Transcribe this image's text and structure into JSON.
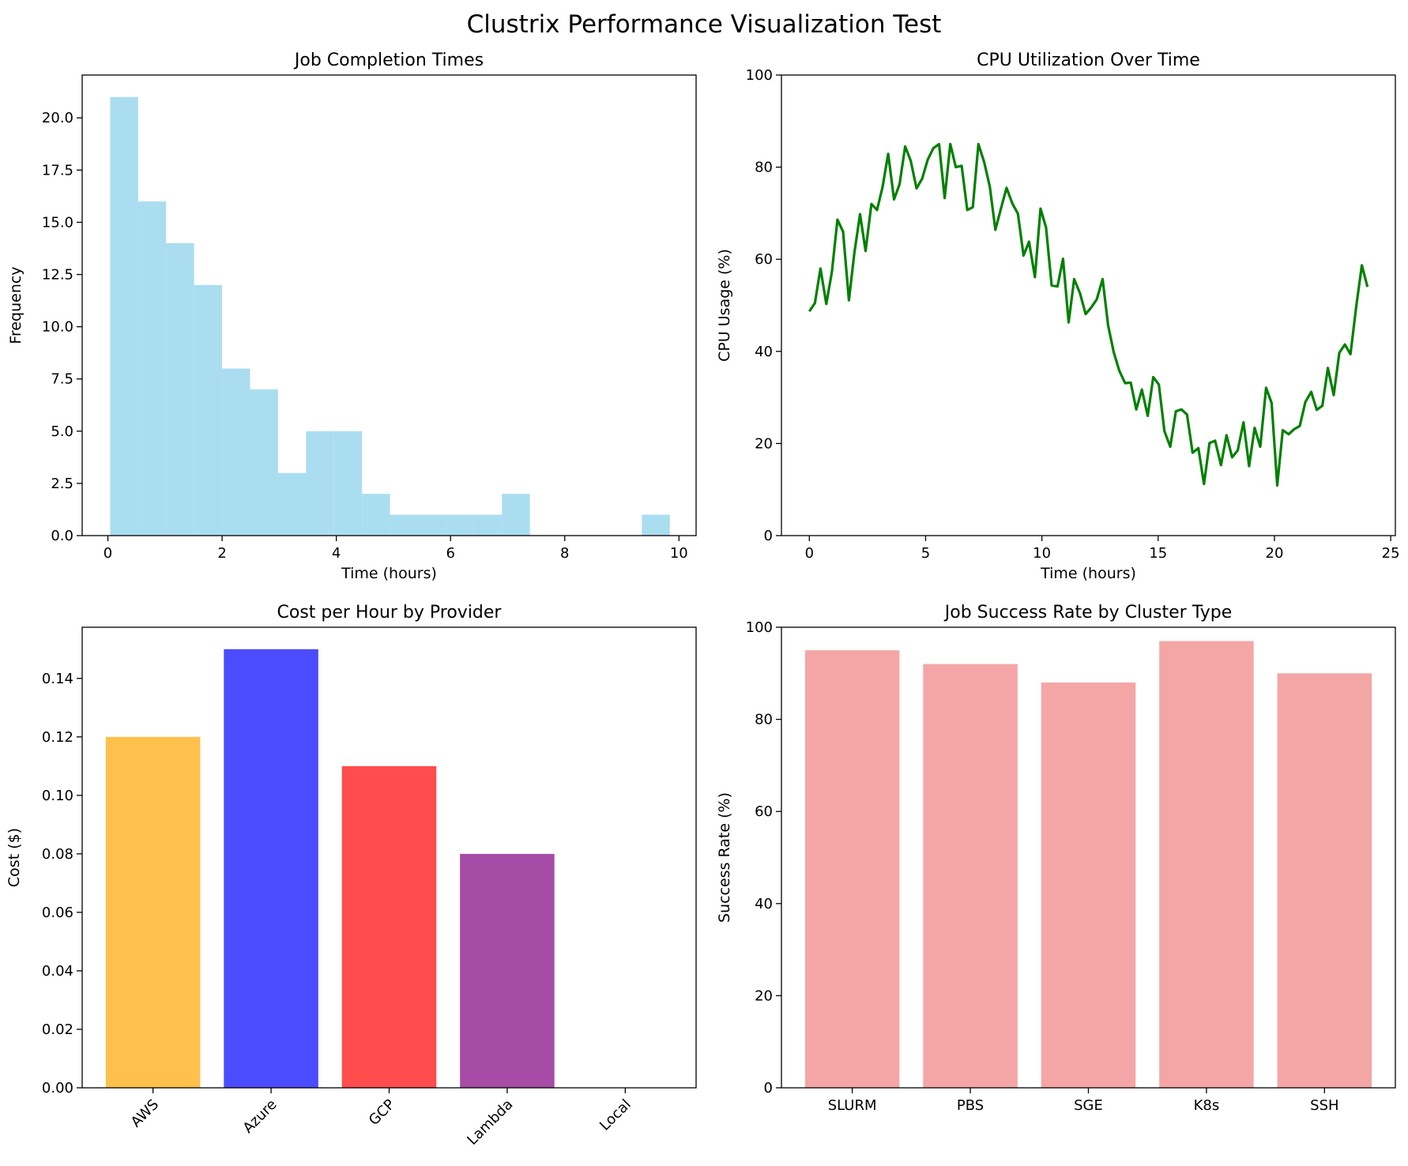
{
  "figure": {
    "title": "Clustrix Performance Visualization Test"
  },
  "chart_data": [
    {
      "id": "hist",
      "type": "bar",
      "title": "Job Completion Times",
      "xlabel": "Time (hours)",
      "ylabel": "Frequency",
      "xlim": [
        -0.45,
        10.3
      ],
      "ylim": [
        0,
        22.05
      ],
      "xticks": [
        0,
        2,
        4,
        6,
        8,
        10
      ],
      "yticks": [
        0.0,
        2.5,
        5.0,
        7.5,
        10.0,
        12.5,
        15.0,
        17.5,
        20.0
      ],
      "color": "#87ceeb",
      "bin_edges": [
        0.04,
        0.53,
        1.02,
        1.51,
        2.0,
        2.49,
        2.98,
        3.47,
        3.96,
        4.45,
        4.94,
        5.43,
        5.92,
        6.41,
        6.9,
        7.39,
        7.88,
        8.37,
        8.86,
        9.35,
        9.84
      ],
      "values": [
        21,
        16,
        14,
        12,
        8,
        7,
        3,
        5,
        5,
        2,
        1,
        1,
        1,
        1,
        2,
        0,
        0,
        0,
        0,
        1
      ]
    },
    {
      "id": "cpu",
      "type": "line",
      "title": "CPU Utilization Over Time",
      "xlabel": "Time (hours)",
      "ylabel": "CPU Usage (%)",
      "xlim": [
        -1.2,
        25.2
      ],
      "ylim": [
        0,
        100
      ],
      "xticks": [
        0,
        5,
        10,
        15,
        20,
        25
      ],
      "yticks": [
        0,
        20,
        40,
        60,
        80,
        100
      ],
      "color": "#008000",
      "x": [
        0,
        0.24,
        0.48,
        0.73,
        0.97,
        1.21,
        1.45,
        1.7,
        1.94,
        2.18,
        2.42,
        2.67,
        2.91,
        3.15,
        3.39,
        3.64,
        3.88,
        4.12,
        4.36,
        4.61,
        4.85,
        5.09,
        5.33,
        5.58,
        5.82,
        6.06,
        6.3,
        6.55,
        6.79,
        7.03,
        7.27,
        7.52,
        7.76,
        8.0,
        8.24,
        8.48,
        8.73,
        8.97,
        9.21,
        9.45,
        9.7,
        9.94,
        10.18,
        10.42,
        10.67,
        10.91,
        11.15,
        11.39,
        11.64,
        11.88,
        12.12,
        12.36,
        12.61,
        12.85,
        13.09,
        13.33,
        13.58,
        13.82,
        14.06,
        14.3,
        14.55,
        14.79,
        15.03,
        15.27,
        15.52,
        15.76,
        16.0,
        16.24,
        16.48,
        16.73,
        16.97,
        17.21,
        17.45,
        17.7,
        17.94,
        18.18,
        18.42,
        18.67,
        18.91,
        19.15,
        19.39,
        19.64,
        19.88,
        20.12,
        20.36,
        20.61,
        20.85,
        21.09,
        21.33,
        21.58,
        21.82,
        22.06,
        22.3,
        22.55,
        22.79,
        23.03,
        23.27,
        23.52,
        23.76,
        24.0
      ],
      "y": [
        48.7,
        50.5,
        58.0,
        50.3,
        57.3,
        68.6,
        66.0,
        51.1,
        61.5,
        69.8,
        61.8,
        72.0,
        70.7,
        75.7,
        82.9,
        73.0,
        76.3,
        84.5,
        81.4,
        75.4,
        77.5,
        81.6,
        84.1,
        85.0,
        73.3,
        85.0,
        80.0,
        80.3,
        70.7,
        71.3,
        85.0,
        81.1,
        75.8,
        66.4,
        71.0,
        75.5,
        72.1,
        69.9,
        60.8,
        63.8,
        56.1,
        71.0,
        66.9,
        54.3,
        54.1,
        60.1,
        46.3,
        55.7,
        52.6,
        48.1,
        49.5,
        51.3,
        55.7,
        45.6,
        39.8,
        35.8,
        33.1,
        33.2,
        27.4,
        31.7,
        26.0,
        34.4,
        32.8,
        22.7,
        19.3,
        27.0,
        27.4,
        26.3,
        18.0,
        19.0,
        11.2,
        20.1,
        20.6,
        15.3,
        21.8,
        17.0,
        18.5,
        24.6,
        15.1,
        23.4,
        19.3,
        32.1,
        28.8,
        10.9,
        22.9,
        22.0,
        23.1,
        23.8,
        29.0,
        31.2,
        27.3,
        28.2,
        36.4,
        30.5,
        39.7,
        41.5,
        39.4,
        49.9,
        58.7,
        54.0
      ]
    },
    {
      "id": "cost",
      "type": "bar",
      "title": "Cost per Hour by Provider",
      "xlabel": "",
      "ylabel": "Cost ($)",
      "ylim": [
        0,
        0.1575
      ],
      "yticks": [
        0.0,
        0.02,
        0.04,
        0.06,
        0.08,
        0.1,
        0.12,
        0.14
      ],
      "categories": [
        "AWS",
        "Azure",
        "GCP",
        "Lambda",
        "Local"
      ],
      "values": [
        0.12,
        0.15,
        0.11,
        0.08,
        0.0
      ],
      "colors": [
        "#ffa500",
        "#0000ff",
        "#ff0000",
        "#800080",
        "#008000"
      ],
      "alpha": 0.7,
      "tick_rotation": 45
    },
    {
      "id": "success",
      "type": "bar",
      "title": "Job Success Rate by Cluster Type",
      "xlabel": "",
      "ylabel": "Success Rate (%)",
      "ylim": [
        0,
        100
      ],
      "yticks": [
        0,
        20,
        40,
        60,
        80,
        100
      ],
      "categories": [
        "SLURM",
        "PBS",
        "SGE",
        "K8s",
        "SSH"
      ],
      "values": [
        95,
        92,
        88,
        97,
        90
      ],
      "color": "#f08080",
      "alpha": 0.7
    }
  ]
}
